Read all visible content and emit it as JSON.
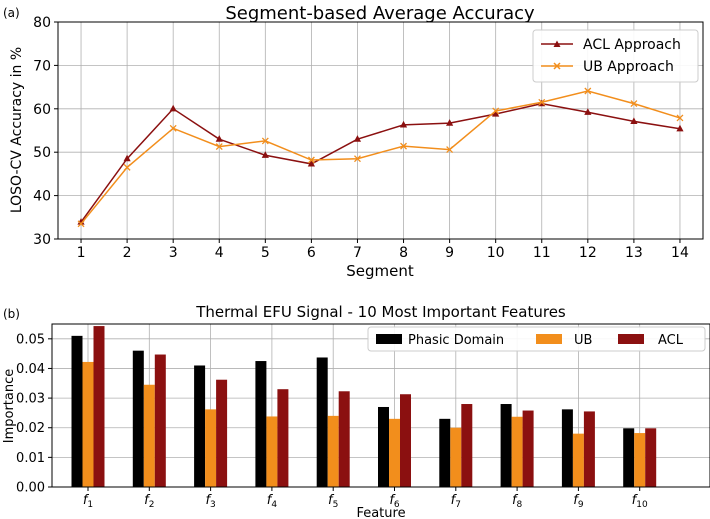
{
  "chart_data": [
    {
      "type": "line",
      "panel_label": "(a)",
      "title": "Segment-based Average Accuracy",
      "xlabel": "Segment",
      "ylabel": "LOSO-CV Accuracy in %",
      "x": [
        1,
        2,
        3,
        4,
        5,
        6,
        7,
        8,
        9,
        10,
        11,
        12,
        13,
        14
      ],
      "xlim": [
        0.5,
        14.5
      ],
      "ylim": [
        30,
        80
      ],
      "yticks": [
        30,
        40,
        50,
        60,
        70,
        80
      ],
      "grid": true,
      "legend_position": "top-right",
      "series": [
        {
          "name": "ACL Approach",
          "color": "#8b1010",
          "marker": "triangle",
          "values": [
            33.9,
            48.5,
            60.0,
            53.0,
            49.3,
            47.3,
            53.0,
            56.3,
            56.7,
            58.8,
            61.2,
            59.2,
            57.1,
            55.4
          ]
        },
        {
          "name": "UB Approach",
          "color": "#f28e1c",
          "marker": "x",
          "values": [
            33.5,
            46.5,
            55.5,
            51.3,
            52.6,
            48.2,
            48.5,
            51.4,
            50.6,
            59.5,
            61.5,
            64.1,
            61.2,
            57.9
          ]
        }
      ]
    },
    {
      "type": "bar",
      "panel_label": "(b)",
      "title": "Thermal EFU Signal - 10 Most Important Features",
      "xlabel": "Feature",
      "ylabel": "Importance",
      "categories": [
        "f1",
        "f2",
        "f3",
        "f4",
        "f5",
        "f6",
        "f7",
        "f8",
        "f9",
        "f10"
      ],
      "category_labels": [
        {
          "base": "f",
          "sub": "1"
        },
        {
          "base": "f",
          "sub": "2"
        },
        {
          "base": "f",
          "sub": "3"
        },
        {
          "base": "f",
          "sub": "4"
        },
        {
          "base": "f",
          "sub": "5"
        },
        {
          "base": "f",
          "sub": "6"
        },
        {
          "base": "f",
          "sub": "7"
        },
        {
          "base": "f",
          "sub": "8"
        },
        {
          "base": "f",
          "sub": "9"
        },
        {
          "base": "f",
          "sub": "10"
        }
      ],
      "ylim": [
        0,
        0.055
      ],
      "yticks": [
        0.0,
        0.01,
        0.02,
        0.03,
        0.04,
        0.05
      ],
      "ytick_labels": [
        "0.00",
        "0.01",
        "0.02",
        "0.03",
        "0.04",
        "0.05"
      ],
      "grid": true,
      "legend_position": "top-right",
      "series": [
        {
          "name": "Phasic Domain",
          "color": "#000000",
          "values": [
            0.051,
            0.046,
            0.041,
            0.0425,
            0.0437,
            0.027,
            0.023,
            0.028,
            0.0262,
            0.0198
          ]
        },
        {
          "name": "UB",
          "color": "#f28e1c",
          "values": [
            0.0422,
            0.0345,
            0.0262,
            0.0238,
            0.024,
            0.023,
            0.02,
            0.0237,
            0.018,
            0.0182
          ]
        },
        {
          "name": "ACL",
          "color": "#8b1010",
          "values": [
            0.0543,
            0.0447,
            0.0362,
            0.033,
            0.0323,
            0.0313,
            0.028,
            0.0258,
            0.0255,
            0.0198
          ]
        }
      ]
    }
  ]
}
